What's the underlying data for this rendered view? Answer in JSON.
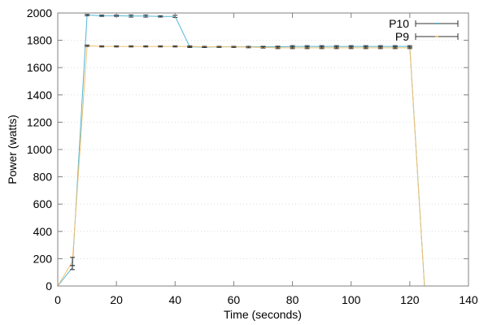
{
  "chart_data": {
    "type": "line",
    "title": "",
    "xlabel": "Time (seconds)",
    "ylabel": "Power (watts)",
    "xlim": [
      0,
      140
    ],
    "ylim": [
      0,
      2000
    ],
    "xticks": [
      0,
      20,
      40,
      60,
      80,
      100,
      120,
      140
    ],
    "yticks": [
      0,
      200,
      400,
      600,
      800,
      1000,
      1200,
      1400,
      1600,
      1800,
      2000
    ],
    "grid": "dotted horizontal",
    "legend_position": "top-right",
    "error_bars": true,
    "series": [
      {
        "name": "P10",
        "color": "#4fb6d4",
        "x": [
          0,
          5,
          10,
          15,
          20,
          25,
          30,
          35,
          40,
          45,
          50,
          55,
          60,
          65,
          70,
          75,
          80,
          85,
          90,
          95,
          100,
          105,
          110,
          115,
          120,
          125
        ],
        "values": [
          0,
          135,
          1985,
          1980,
          1980,
          1978,
          1978,
          1975,
          1975,
          1752,
          1750,
          1752,
          1752,
          1752,
          1752,
          1752,
          1755,
          1755,
          1755,
          1755,
          1755,
          1755,
          1755,
          1755,
          1755,
          0
        ],
        "errors": [
          0,
          15,
          5,
          5,
          5,
          8,
          8,
          5,
          8,
          5,
          3,
          3,
          3,
          4,
          4,
          5,
          6,
          6,
          6,
          6,
          6,
          6,
          6,
          6,
          6,
          0
        ]
      },
      {
        "name": "P9",
        "color": "#f0c070",
        "x": [
          0,
          5,
          10,
          15,
          20,
          25,
          30,
          35,
          40,
          45,
          50,
          55,
          60,
          65,
          70,
          75,
          80,
          85,
          90,
          95,
          100,
          105,
          110,
          115,
          120,
          125
        ],
        "values": [
          0,
          180,
          1760,
          1755,
          1755,
          1755,
          1755,
          1755,
          1755,
          1755,
          1752,
          1752,
          1752,
          1750,
          1748,
          1745,
          1745,
          1745,
          1745,
          1745,
          1745,
          1745,
          1745,
          1745,
          1745,
          0
        ],
        "errors": [
          0,
          30,
          5,
          4,
          4,
          4,
          4,
          4,
          4,
          4,
          4,
          4,
          4,
          5,
          5,
          6,
          6,
          6,
          6,
          6,
          6,
          6,
          6,
          6,
          6,
          0
        ]
      }
    ]
  }
}
